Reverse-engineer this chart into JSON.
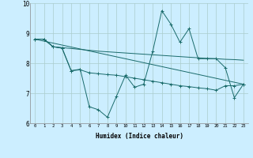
{
  "xlabel": "Humidex (Indice chaleur)",
  "background_color": "#cceeff",
  "line_color": "#1a6b6b",
  "grid_color": "#aacccc",
  "xlim": [
    -0.5,
    23.5
  ],
  "ylim": [
    6,
    10
  ],
  "yticks": [
    6,
    7,
    8,
    9,
    10
  ],
  "xticks": [
    0,
    1,
    2,
    3,
    4,
    5,
    6,
    7,
    8,
    9,
    10,
    11,
    12,
    13,
    14,
    15,
    16,
    17,
    18,
    19,
    20,
    21,
    22,
    23
  ],
  "series1_x": [
    0,
    1,
    2,
    3,
    4,
    5,
    6,
    7,
    8,
    9,
    10,
    11,
    12,
    13,
    14,
    15,
    16,
    17,
    18,
    19,
    20,
    21,
    22,
    23
  ],
  "series1_y": [
    8.8,
    8.8,
    8.55,
    8.5,
    7.75,
    7.8,
    6.55,
    6.45,
    6.2,
    6.9,
    7.6,
    7.2,
    7.3,
    8.4,
    9.75,
    9.3,
    8.7,
    9.15,
    8.15,
    8.15,
    8.15,
    7.85,
    6.85,
    7.3
  ],
  "series2_x": [
    0,
    1,
    2,
    3,
    4,
    5,
    6,
    7,
    8,
    9,
    10,
    11,
    12,
    13,
    14,
    15,
    16,
    17,
    18,
    19,
    20,
    21,
    22,
    23
  ],
  "series2_y": [
    8.8,
    8.8,
    8.55,
    8.5,
    7.75,
    7.78,
    7.68,
    7.65,
    7.62,
    7.6,
    7.55,
    7.5,
    7.45,
    7.4,
    7.35,
    7.3,
    7.25,
    7.22,
    7.18,
    7.15,
    7.1,
    7.25,
    7.25,
    7.3
  ],
  "series3_x": [
    0,
    23
  ],
  "series3_y": [
    8.8,
    7.3
  ],
  "series4_x": [
    0,
    1,
    2,
    3,
    4,
    5,
    6,
    7,
    8,
    9,
    10,
    11,
    12,
    13,
    14,
    15,
    16,
    17,
    18,
    19,
    20,
    21,
    22,
    23
  ],
  "series4_y": [
    8.8,
    8.8,
    8.55,
    8.52,
    8.49,
    8.46,
    8.43,
    8.4,
    8.38,
    8.36,
    8.34,
    8.32,
    8.3,
    8.28,
    8.26,
    8.24,
    8.22,
    8.2,
    8.18,
    8.16,
    8.15,
    8.13,
    8.12,
    8.1
  ]
}
